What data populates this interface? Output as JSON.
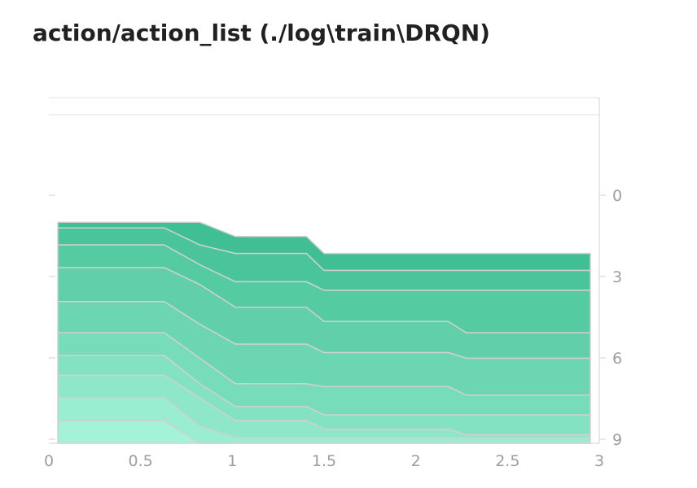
{
  "title": "action/action_list (./log\\train\\DRQN)",
  "chart_data": {
    "type": "area",
    "subtype": "ridgeline",
    "title": "action/action_list (./log\\train\\DRQN)",
    "x_ticks": [
      "0",
      "0.5",
      "1",
      "1.5",
      "2",
      "2.5",
      "3"
    ],
    "y_ticks": [
      "0",
      "3",
      "6",
      "9"
    ],
    "xlim": [
      0,
      3
    ],
    "ylim": [
      -3,
      9.2
    ],
    "colors": {
      "top": "#3fbf93",
      "bottom": "#a4f3d8",
      "outline": "#d0d0d0",
      "grid": "#e0e0e0"
    },
    "x": [
      0,
      0.6,
      0.8,
      1.0,
      1.4,
      1.5,
      1.9,
      2.0,
      2.2,
      2.3,
      2.9,
      3.0
    ],
    "series": [
      {
        "values": [
          1.4,
          1.4,
          1.4,
          1.9,
          1.9,
          2.5,
          2.5,
          2.5,
          2.5,
          2.5,
          2.5,
          2.5
        ]
      },
      {
        "values": [
          1.6,
          1.6,
          2.2,
          2.5,
          2.5,
          3.1,
          3.1,
          3.1,
          3.1,
          3.1,
          3.1,
          3.1
        ]
      },
      {
        "values": [
          2.2,
          2.2,
          2.9,
          3.5,
          3.5,
          3.8,
          3.8,
          3.8,
          3.8,
          3.8,
          3.8,
          3.8
        ]
      },
      {
        "values": [
          3.0,
          3.0,
          3.6,
          4.4,
          4.4,
          4.9,
          4.9,
          4.9,
          4.9,
          5.3,
          5.3,
          5.3
        ]
      },
      {
        "values": [
          4.2,
          4.2,
          5.0,
          5.7,
          5.7,
          6.0,
          6.0,
          6.0,
          6.0,
          6.2,
          6.2,
          6.2
        ]
      },
      {
        "values": [
          5.3,
          5.3,
          6.2,
          7.1,
          7.1,
          7.2,
          7.2,
          7.2,
          7.2,
          7.5,
          7.5,
          7.5
        ]
      },
      {
        "values": [
          6.1,
          6.1,
          7.1,
          7.9,
          7.9,
          8.2,
          8.2,
          8.2,
          8.2,
          8.2,
          8.2,
          8.2
        ]
      },
      {
        "values": [
          6.8,
          6.8,
          7.6,
          8.4,
          8.4,
          8.7,
          8.7,
          8.7,
          8.7,
          8.9,
          8.9,
          8.9
        ]
      },
      {
        "values": [
          7.6,
          7.6,
          8.6,
          9.0,
          9.0,
          9.0,
          9.0,
          9.0,
          9.0,
          9.0,
          9.0,
          9.0
        ]
      },
      {
        "values": [
          8.4,
          8.4,
          9.2,
          9.2,
          9.2,
          9.2,
          9.2,
          9.2,
          9.2,
          9.2,
          9.2,
          9.2
        ]
      }
    ]
  }
}
